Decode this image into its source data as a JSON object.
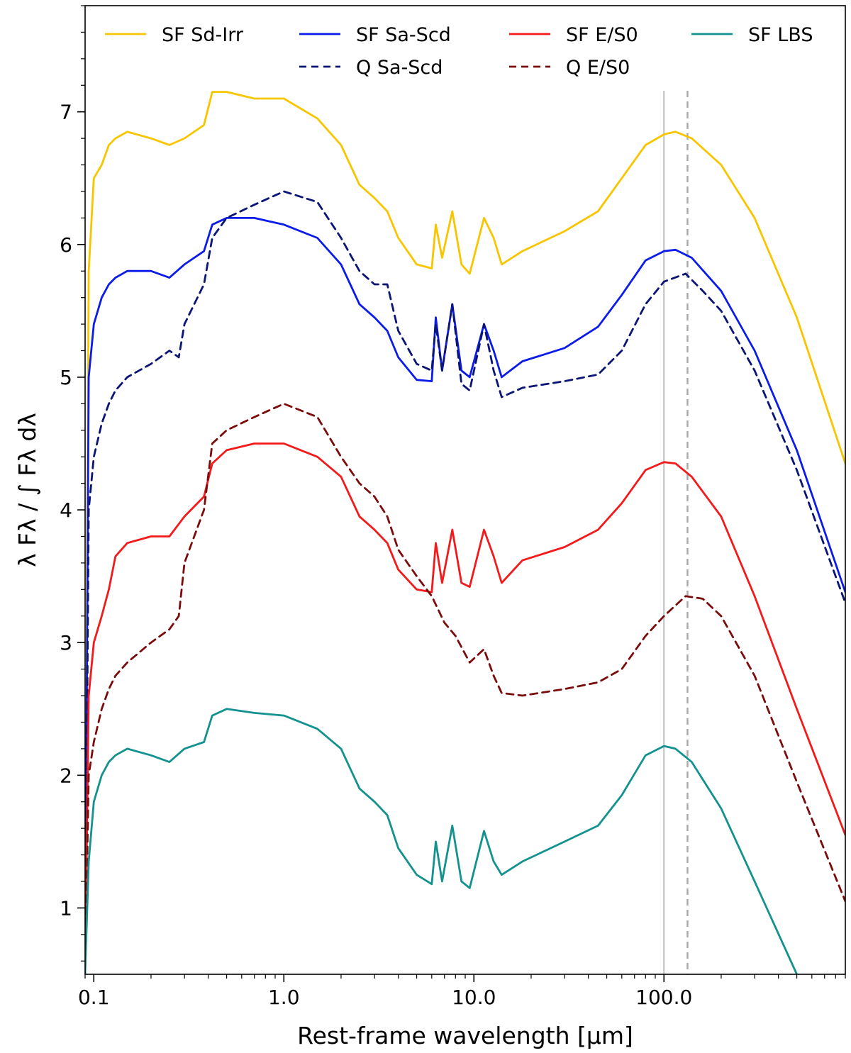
{
  "chart_data": {
    "type": "line",
    "title": "",
    "xlabel": "Rest-frame wavelength [μm]",
    "ylabel": "λ Fλ / ∫ Fλ dλ",
    "xscale": "log",
    "xlim": [
      0.09,
      900
    ],
    "ylim": [
      0.5,
      7.8
    ],
    "xticks": [
      {
        "value": 0.1,
        "label": "0.1"
      },
      {
        "value": 1,
        "label": "1.0"
      },
      {
        "value": 10,
        "label": "10.0"
      },
      {
        "value": 100,
        "label": "100.0"
      }
    ],
    "yticks": [
      {
        "value": 1,
        "label": "1"
      },
      {
        "value": 2,
        "label": "2"
      },
      {
        "value": 3,
        "label": "3"
      },
      {
        "value": 4,
        "label": "4"
      },
      {
        "value": 5,
        "label": "5"
      },
      {
        "value": 6,
        "label": "6"
      },
      {
        "value": 7,
        "label": "7"
      }
    ],
    "grid": false,
    "legend_position": "top",
    "reference_lines": [
      {
        "x": 100,
        "color": "#cccccc",
        "style": "solid"
      },
      {
        "x": 133,
        "color": "#aaaaaa",
        "style": "dashed"
      }
    ],
    "series": [
      {
        "name": "SF Sd-Irr",
        "color": "#f7c600",
        "style": "solid",
        "x": [
          0.09,
          0.094,
          0.1,
          0.11,
          0.12,
          0.13,
          0.15,
          0.2,
          0.25,
          0.3,
          0.38,
          0.42,
          0.5,
          0.7,
          1.0,
          1.5,
          2.0,
          2.5,
          3.0,
          3.5,
          4.0,
          5.0,
          6.0,
          6.3,
          6.8,
          7.7,
          8.6,
          9.5,
          11.3,
          12.7,
          14.0,
          18.0,
          30.0,
          45.0,
          60.0,
          80.0,
          100.0,
          115.0,
          140.0,
          200.0,
          300.0,
          500.0,
          900.0
        ],
        "y": [
          0.5,
          5.8,
          6.5,
          6.6,
          6.75,
          6.8,
          6.85,
          6.8,
          6.75,
          6.8,
          6.9,
          7.15,
          7.15,
          7.1,
          7.1,
          6.95,
          6.75,
          6.45,
          6.35,
          6.25,
          6.05,
          5.85,
          5.82,
          6.15,
          5.9,
          6.25,
          5.85,
          5.78,
          6.2,
          6.05,
          5.85,
          5.95,
          6.1,
          6.25,
          6.5,
          6.75,
          6.83,
          6.85,
          6.8,
          6.6,
          6.2,
          5.45,
          4.35
        ]
      },
      {
        "name": "SF Sa-Scd",
        "color": "#0b1be8",
        "style": "solid",
        "x": [
          0.09,
          0.094,
          0.1,
          0.11,
          0.12,
          0.13,
          0.15,
          0.2,
          0.25,
          0.3,
          0.38,
          0.42,
          0.5,
          0.7,
          1.0,
          1.5,
          2.0,
          2.5,
          3.0,
          3.5,
          4.0,
          5.0,
          6.0,
          6.3,
          6.8,
          7.7,
          8.6,
          9.5,
          11.3,
          12.7,
          14.0,
          18.0,
          30.0,
          45.0,
          60.0,
          80.0,
          100.0,
          115.0,
          140.0,
          200.0,
          300.0,
          500.0,
          900.0
        ],
        "y": [
          0.5,
          5.0,
          5.4,
          5.6,
          5.7,
          5.75,
          5.8,
          5.8,
          5.75,
          5.85,
          5.95,
          6.15,
          6.2,
          6.2,
          6.15,
          6.05,
          5.85,
          5.55,
          5.45,
          5.35,
          5.15,
          4.98,
          4.97,
          5.45,
          5.05,
          5.55,
          5.05,
          5.0,
          5.4,
          5.2,
          5.0,
          5.12,
          5.22,
          5.38,
          5.62,
          5.88,
          5.95,
          5.96,
          5.9,
          5.65,
          5.2,
          4.45,
          3.38
        ]
      },
      {
        "name": "Q Sa-Scd",
        "color": "#0a1575",
        "style": "dashed",
        "x": [
          0.09,
          0.094,
          0.1,
          0.11,
          0.12,
          0.13,
          0.15,
          0.2,
          0.25,
          0.28,
          0.3,
          0.38,
          0.42,
          0.5,
          0.7,
          1.0,
          1.5,
          2.0,
          2.5,
          3.0,
          3.5,
          4.0,
          5.0,
          6.0,
          6.3,
          6.8,
          7.7,
          8.6,
          9.5,
          11.3,
          12.7,
          14.0,
          18.0,
          30.0,
          45.0,
          60.0,
          80.0,
          100.0,
          130.0,
          160.0,
          200.0,
          300.0,
          500.0,
          900.0
        ],
        "y": [
          0.5,
          4.0,
          4.4,
          4.65,
          4.8,
          4.9,
          5.0,
          5.1,
          5.2,
          5.15,
          5.4,
          5.7,
          6.05,
          6.2,
          6.3,
          6.4,
          6.32,
          6.05,
          5.8,
          5.7,
          5.7,
          5.35,
          5.1,
          5.05,
          5.4,
          5.05,
          5.55,
          4.95,
          4.9,
          5.4,
          5.05,
          4.85,
          4.92,
          4.97,
          5.02,
          5.2,
          5.55,
          5.72,
          5.78,
          5.65,
          5.5,
          5.05,
          4.3,
          3.3
        ]
      },
      {
        "name": "SF E/S0",
        "color": "#f21a1a",
        "style": "solid",
        "x": [
          0.09,
          0.094,
          0.1,
          0.11,
          0.12,
          0.13,
          0.15,
          0.2,
          0.25,
          0.3,
          0.38,
          0.42,
          0.5,
          0.7,
          1.0,
          1.5,
          2.0,
          2.5,
          3.0,
          3.5,
          4.0,
          5.0,
          6.0,
          6.3,
          6.8,
          7.7,
          8.6,
          9.5,
          11.3,
          12.7,
          14.0,
          18.0,
          30.0,
          45.0,
          60.0,
          80.0,
          100.0,
          115.0,
          140.0,
          200.0,
          300.0,
          500.0,
          900.0
        ],
        "y": [
          0.5,
          2.6,
          3.0,
          3.2,
          3.4,
          3.65,
          3.75,
          3.8,
          3.8,
          3.95,
          4.1,
          4.35,
          4.45,
          4.5,
          4.5,
          4.4,
          4.25,
          3.95,
          3.85,
          3.75,
          3.55,
          3.4,
          3.38,
          3.75,
          3.45,
          3.85,
          3.45,
          3.42,
          3.85,
          3.65,
          3.45,
          3.62,
          3.72,
          3.85,
          4.05,
          4.3,
          4.36,
          4.35,
          4.25,
          3.95,
          3.35,
          2.5,
          1.55
        ]
      },
      {
        "name": "Q E/S0",
        "color": "#7a0c0c",
        "style": "dashed",
        "x": [
          0.09,
          0.094,
          0.1,
          0.11,
          0.12,
          0.13,
          0.15,
          0.2,
          0.25,
          0.28,
          0.3,
          0.38,
          0.42,
          0.5,
          0.7,
          1.0,
          1.5,
          2.0,
          2.5,
          3.0,
          3.5,
          4.0,
          5.0,
          6.0,
          7.0,
          8.0,
          9.5,
          11.3,
          12.7,
          14.0,
          18.0,
          30.0,
          45.0,
          60.0,
          80.0,
          100.0,
          130.0,
          160.0,
          200.0,
          300.0,
          500.0,
          900.0
        ],
        "y": [
          0.5,
          2.0,
          2.25,
          2.5,
          2.65,
          2.75,
          2.85,
          3.0,
          3.1,
          3.2,
          3.6,
          4.0,
          4.5,
          4.6,
          4.7,
          4.8,
          4.7,
          4.4,
          4.2,
          4.1,
          3.95,
          3.7,
          3.5,
          3.35,
          3.15,
          3.05,
          2.85,
          2.95,
          2.75,
          2.62,
          2.6,
          2.65,
          2.7,
          2.8,
          3.05,
          3.2,
          3.35,
          3.33,
          3.2,
          2.75,
          1.95,
          1.05
        ]
      },
      {
        "name": "SF LBS",
        "color": "#13928f",
        "style": "solid",
        "x": [
          0.09,
          0.094,
          0.1,
          0.11,
          0.12,
          0.13,
          0.15,
          0.2,
          0.25,
          0.3,
          0.38,
          0.42,
          0.5,
          0.7,
          1.0,
          1.5,
          2.0,
          2.5,
          3.0,
          3.5,
          4.0,
          5.0,
          6.0,
          6.3,
          6.8,
          7.7,
          8.6,
          9.5,
          11.3,
          12.7,
          14.0,
          18.0,
          30.0,
          45.0,
          60.0,
          80.0,
          100.0,
          115.0,
          140.0,
          200.0,
          300.0,
          500.0
        ],
        "y": [
          0.5,
          1.35,
          1.8,
          2.0,
          2.1,
          2.15,
          2.2,
          2.15,
          2.1,
          2.2,
          2.25,
          2.45,
          2.5,
          2.47,
          2.45,
          2.35,
          2.2,
          1.9,
          1.8,
          1.7,
          1.45,
          1.25,
          1.18,
          1.5,
          1.2,
          1.62,
          1.2,
          1.15,
          1.58,
          1.35,
          1.25,
          1.35,
          1.5,
          1.62,
          1.85,
          2.15,
          2.22,
          2.2,
          2.1,
          1.75,
          1.2,
          0.5
        ]
      }
    ],
    "legend": [
      {
        "name": "SF Sd-Irr",
        "color": "#f7c600",
        "style": "solid"
      },
      {
        "name": "SF Sa-Scd",
        "color": "#0b1be8",
        "style": "solid"
      },
      {
        "name": "SF E/S0",
        "color": "#f21a1a",
        "style": "solid"
      },
      {
        "name": "SF LBS",
        "color": "#13928f",
        "style": "solid"
      },
      {
        "name": "Q Sa-Scd",
        "color": "#0a1575",
        "style": "dashed"
      },
      {
        "name": "Q E/S0",
        "color": "#7a0c0c",
        "style": "dashed"
      }
    ]
  }
}
